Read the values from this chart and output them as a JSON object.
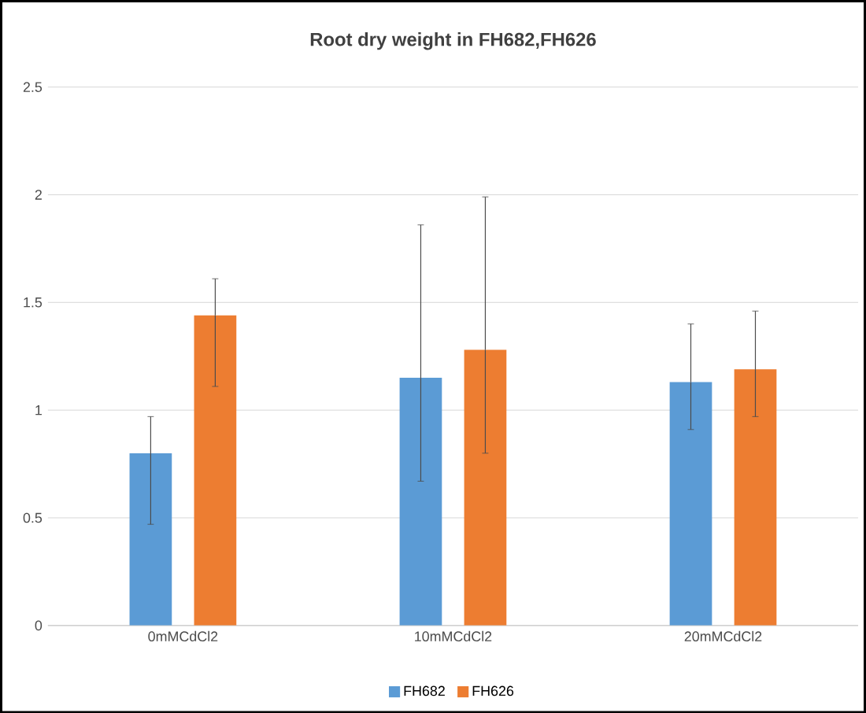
{
  "chart_data": {
    "type": "bar",
    "title": "Root dry weight in FH682,FH626",
    "categories": [
      "0mMCdCl2",
      "10mMCdCl2",
      "20mMCdCl2"
    ],
    "series": [
      {
        "name": "FH682",
        "color": "#5b9bd5",
        "values": [
          0.8,
          1.15,
          1.13
        ],
        "errors": [
          [
            0.47,
            0.97
          ],
          [
            0.67,
            1.86
          ],
          [
            0.91,
            1.4
          ]
        ]
      },
      {
        "name": "FH626",
        "color": "#ed7d31",
        "values": [
          1.44,
          1.28,
          1.19
        ],
        "errors": [
          [
            1.11,
            1.61
          ],
          [
            0.8,
            1.99
          ],
          [
            0.97,
            1.46
          ]
        ]
      }
    ],
    "ylim": [
      0,
      2.5
    ],
    "yticks": [
      0,
      0.5,
      1,
      1.5,
      2,
      2.5
    ],
    "grid": "y",
    "legend": "bottom"
  }
}
